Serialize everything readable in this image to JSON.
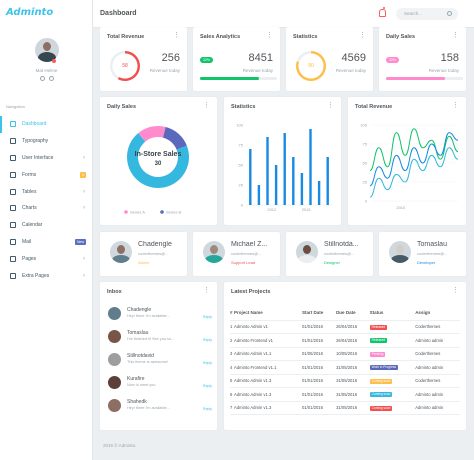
{
  "app": {
    "logo": "Adminto",
    "page_title": "Dashboard",
    "search_placeholder": "Search...",
    "footer": "2016 © Adminto."
  },
  "user": {
    "name": "Mat Helme"
  },
  "sidebar": {
    "heading": "Navigation",
    "items": [
      {
        "label": "Dashboard",
        "active": true,
        "chevron": false
      },
      {
        "label": "Typography",
        "chevron": false
      },
      {
        "label": "User Interface",
        "chevron": true
      },
      {
        "label": "Forms",
        "badge": "6",
        "badge_color": "#ffbd4a"
      },
      {
        "label": "Tables",
        "chevron": true
      },
      {
        "label": "Charts",
        "chevron": true
      },
      {
        "label": "Calendar",
        "chevron": false
      },
      {
        "label": "Mail",
        "badge": "New",
        "badge_color": "#5d6dc3"
      },
      {
        "label": "Pages",
        "chevron": true
      },
      {
        "label": "Extra Pages",
        "chevron": true
      }
    ]
  },
  "stats": [
    {
      "title": "Total Revenue",
      "value": "256",
      "sub": "Revenue today",
      "ring_value": "58",
      "ring_color": "#f05050"
    },
    {
      "title": "Sales Analytics",
      "value": "8451",
      "sub": "Revenue today",
      "pill": "32%",
      "color": "#10c469",
      "progress": 0.77
    },
    {
      "title": "Statistics",
      "value": "4569",
      "sub": "Revenue today",
      "ring_value": "80",
      "ring_color": "#ffbd4a"
    },
    {
      "title": "Daily Sales",
      "value": "158",
      "sub": "Revenue today",
      "pill": "32%",
      "color": "#ff8acc",
      "progress": 0.77
    }
  ],
  "daily_sales": {
    "title": "Daily Sales",
    "center_label": "In-Store Sales",
    "center_value": "30",
    "legend": [
      "Series A",
      "Series B"
    ]
  },
  "statistics": {
    "title": "Statistics"
  },
  "total_revenue": {
    "title": "Total Revenue"
  },
  "chart_data": [
    {
      "type": "pie",
      "title": "Daily Sales",
      "categories": [
        "Series A",
        "Series B",
        "Other"
      ],
      "values": [
        15,
        15,
        70
      ],
      "colors": [
        "#ff8acc",
        "#5b69bc",
        "#35b8e0"
      ]
    },
    {
      "type": "bar",
      "title": "Statistics",
      "ylim": [
        0,
        100
      ],
      "yticks": [
        0,
        25,
        50,
        75,
        100
      ],
      "x_tick_labels": [
        "2012",
        "2015"
      ],
      "values": [
        70,
        25,
        85,
        50,
        90,
        60,
        40,
        95,
        30,
        60
      ],
      "color": "#188ae2"
    },
    {
      "type": "line",
      "title": "Total Revenue",
      "ylim": [
        0,
        100
      ],
      "yticks": [
        0,
        25,
        50,
        75,
        100
      ],
      "x_tick_labels": [
        "2010"
      ],
      "x": [
        0,
        1,
        2,
        3,
        4,
        5,
        6,
        7,
        8,
        9,
        10
      ],
      "series": [
        {
          "color": "#10c469",
          "values": [
            40,
            70,
            45,
            90,
            60,
            95,
            70,
            80,
            55,
            85,
            65
          ]
        },
        {
          "color": "#188ae2",
          "values": [
            20,
            45,
            30,
            60,
            40,
            70,
            50,
            75,
            60,
            90,
            80
          ]
        },
        {
          "color": "#35b8e0",
          "values": [
            5,
            30,
            15,
            35,
            25,
            55,
            40,
            60,
            45,
            70,
            55
          ]
        }
      ]
    }
  ],
  "profiles": [
    {
      "name": "Chadengle",
      "email": "coderthemes@...",
      "role": "Admin",
      "role_color": "#ffbd4a",
      "shirt": "#607d8b"
    },
    {
      "name": "Michael Z...",
      "email": "coderthemes@...",
      "role": "Support Lead",
      "role_color": "#f05050",
      "shirt": "#26a69a"
    },
    {
      "name": "Stillnotda...",
      "email": "coderthemes@...",
      "role": "Designer",
      "role_color": "#10c469",
      "shirt": "#eceff1"
    },
    {
      "name": "Tomaslau",
      "email": "coderthemes@...",
      "role": "Developer",
      "role_color": "#188ae2",
      "shirt": "#455a64"
    }
  ],
  "inbox": {
    "title": "Inbox",
    "reply": "Reply",
    "items": [
      {
        "name": "Chadengle",
        "msg": "Hey! there I'm available..."
      },
      {
        "name": "Tomaslau",
        "msg": "I've finished it! See you so..."
      },
      {
        "name": "Stillnotdavid",
        "msg": "This theme is awesome!"
      },
      {
        "name": "Kurafire",
        "msg": "Nice to meet you"
      },
      {
        "name": "Shahedk",
        "msg": "Hey! there I'm available..."
      }
    ]
  },
  "projects": {
    "title": "Latest Projects",
    "headers": [
      "#",
      "Project Name",
      "Start Date",
      "Due Date",
      "Status",
      "Assign"
    ],
    "rows": [
      [
        "1",
        "Adminto Admin v1",
        "01/01/2016",
        "26/04/2016",
        "Released",
        "#f05050",
        "Coderthemes"
      ],
      [
        "2",
        "Adminto Frontend v1",
        "01/01/2016",
        "26/04/2016",
        "Released",
        "#10c469",
        "Adminto admin"
      ],
      [
        "3",
        "Adminto Admin v1.1",
        "01/05/2016",
        "10/05/2016",
        "Pending",
        "#ff8acc",
        "Coderthemes"
      ],
      [
        "4",
        "Adminto Frontend v1.1",
        "01/01/2016",
        "31/05/2016",
        "Work in Progress",
        "#5b69bc",
        "Adminto admin"
      ],
      [
        "5",
        "Adminto Admin v1.3",
        "01/01/2016",
        "31/05/2016",
        "Coming soon",
        "#ffbd4a",
        "Coderthemes"
      ],
      [
        "6",
        "Adminto Admin v1.3",
        "01/01/2016",
        "31/05/2016",
        "Coming soon",
        "#35b8e0",
        "Adminto admin"
      ],
      [
        "7",
        "Adminto Admin v1.3",
        "01/01/2016",
        "31/05/2016",
        "Coming soon",
        "#f05050",
        "Adminto admin"
      ]
    ]
  }
}
